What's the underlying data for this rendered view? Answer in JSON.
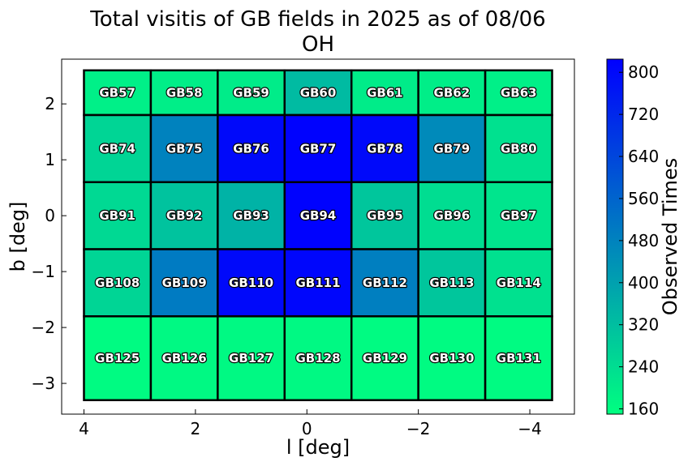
{
  "chart_data": {
    "type": "heatmap",
    "title": "Total visitis of GB fields in 2025 as of 08/06",
    "subtitle": "OH",
    "xlabel": "l [deg]",
    "ylabel": "b [deg]",
    "colorbar_label": "Observed Times",
    "xlim": [
      4.4,
      -4.8
    ],
    "ylim": [
      -3.55,
      2.8
    ],
    "x_ticks": [
      4,
      2,
      0,
      -2,
      -4
    ],
    "x_tick_labels": [
      "4",
      "2",
      "0",
      "−2",
      "−4"
    ],
    "y_ticks": [
      2,
      1,
      0,
      -1,
      -2,
      -3
    ],
    "y_tick_labels": [
      "2",
      "1",
      "0",
      "−1",
      "−2",
      "−3"
    ],
    "colorbar_range": [
      150,
      825
    ],
    "colorbar_ticks": [
      160,
      240,
      320,
      400,
      480,
      560,
      640,
      720,
      800
    ],
    "colormap": [
      "#00ff80",
      "#0000ff"
    ],
    "grid": false,
    "cells": [
      {
        "name": "GB57",
        "l": [
          4.0,
          2.8
        ],
        "b": [
          1.8,
          2.6
        ],
        "value": 190
      },
      {
        "name": "GB58",
        "l": [
          2.8,
          1.6
        ],
        "b": [
          1.8,
          2.6
        ],
        "value": 195
      },
      {
        "name": "GB59",
        "l": [
          1.6,
          0.4
        ],
        "b": [
          1.8,
          2.6
        ],
        "value": 200
      },
      {
        "name": "GB60",
        "l": [
          0.4,
          -0.8
        ],
        "b": [
          1.8,
          2.6
        ],
        "value": 330
      },
      {
        "name": "GB61",
        "l": [
          -0.8,
          -2.0
        ],
        "b": [
          1.8,
          2.6
        ],
        "value": 200
      },
      {
        "name": "GB62",
        "l": [
          -2.0,
          -3.2
        ],
        "b": [
          1.8,
          2.6
        ],
        "value": 195
      },
      {
        "name": "GB63",
        "l": [
          -3.2,
          -4.4
        ],
        "b": [
          1.8,
          2.6
        ],
        "value": 190
      },
      {
        "name": "GB74",
        "l": [
          4.0,
          2.8
        ],
        "b": [
          0.6,
          1.8
        ],
        "value": 260
      },
      {
        "name": "GB75",
        "l": [
          2.8,
          1.6
        ],
        "b": [
          0.6,
          1.8
        ],
        "value": 480
      },
      {
        "name": "GB76",
        "l": [
          1.6,
          0.4
        ],
        "b": [
          0.6,
          1.8
        ],
        "value": 800
      },
      {
        "name": "GB77",
        "l": [
          0.4,
          -0.8
        ],
        "b": [
          0.6,
          1.8
        ],
        "value": 820
      },
      {
        "name": "GB78",
        "l": [
          -0.8,
          -2.0
        ],
        "b": [
          0.6,
          1.8
        ],
        "value": 800
      },
      {
        "name": "GB79",
        "l": [
          -2.0,
          -3.2
        ],
        "b": [
          0.6,
          1.8
        ],
        "value": 460
      },
      {
        "name": "GB80",
        "l": [
          -3.2,
          -4.4
        ],
        "b": [
          0.6,
          1.8
        ],
        "value": 230
      },
      {
        "name": "GB91",
        "l": [
          4.0,
          2.8
        ],
        "b": [
          -0.6,
          0.6
        ],
        "value": 250
      },
      {
        "name": "GB92",
        "l": [
          2.8,
          1.6
        ],
        "b": [
          -0.6,
          0.6
        ],
        "value": 310
      },
      {
        "name": "GB93",
        "l": [
          1.6,
          0.4
        ],
        "b": [
          -0.6,
          0.6
        ],
        "value": 350
      },
      {
        "name": "GB94",
        "l": [
          0.4,
          -0.8
        ],
        "b": [
          -0.6,
          0.6
        ],
        "value": 820
      },
      {
        "name": "GB95",
        "l": [
          -0.8,
          -2.0
        ],
        "b": [
          -0.6,
          0.6
        ],
        "value": 300
      },
      {
        "name": "GB96",
        "l": [
          -2.0,
          -3.2
        ],
        "b": [
          -0.6,
          0.6
        ],
        "value": 240
      },
      {
        "name": "GB97",
        "l": [
          -3.2,
          -4.4
        ],
        "b": [
          -0.6,
          0.6
        ],
        "value": 220
      },
      {
        "name": "GB108",
        "l": [
          4.0,
          2.8
        ],
        "b": [
          -1.8,
          -0.6
        ],
        "value": 260
      },
      {
        "name": "GB109",
        "l": [
          2.8,
          1.6
        ],
        "b": [
          -1.8,
          -0.6
        ],
        "value": 500
      },
      {
        "name": "GB110",
        "l": [
          1.6,
          0.4
        ],
        "b": [
          -1.8,
          -0.6
        ],
        "value": 800
      },
      {
        "name": "GB111",
        "l": [
          0.4,
          -0.8
        ],
        "b": [
          -1.8,
          -0.6
        ],
        "value": 810
      },
      {
        "name": "GB112",
        "l": [
          -0.8,
          -2.0
        ],
        "b": [
          -1.8,
          -0.6
        ],
        "value": 490
      },
      {
        "name": "GB113",
        "l": [
          -2.0,
          -3.2
        ],
        "b": [
          -1.8,
          -0.6
        ],
        "value": 300
      },
      {
        "name": "GB114",
        "l": [
          -3.2,
          -4.4
        ],
        "b": [
          -1.8,
          -0.6
        ],
        "value": 230
      },
      {
        "name": "GB125",
        "l": [
          4.0,
          2.8
        ],
        "b": [
          -3.3,
          -1.8
        ],
        "value": 160
      },
      {
        "name": "GB126",
        "l": [
          2.8,
          1.6
        ],
        "b": [
          -3.3,
          -1.8
        ],
        "value": 165
      },
      {
        "name": "GB127",
        "l": [
          1.6,
          0.4
        ],
        "b": [
          -3.3,
          -1.8
        ],
        "value": 165
      },
      {
        "name": "GB128",
        "l": [
          0.4,
          -0.8
        ],
        "b": [
          -3.3,
          -1.8
        ],
        "value": 165
      },
      {
        "name": "GB129",
        "l": [
          -0.8,
          -2.0
        ],
        "b": [
          -3.3,
          -1.8
        ],
        "value": 160
      },
      {
        "name": "GB130",
        "l": [
          -2.0,
          -3.2
        ],
        "b": [
          -3.3,
          -1.8
        ],
        "value": 160
      },
      {
        "name": "GB131",
        "l": [
          -3.2,
          -4.4
        ],
        "b": [
          -3.3,
          -1.8
        ],
        "value": 160
      }
    ]
  }
}
